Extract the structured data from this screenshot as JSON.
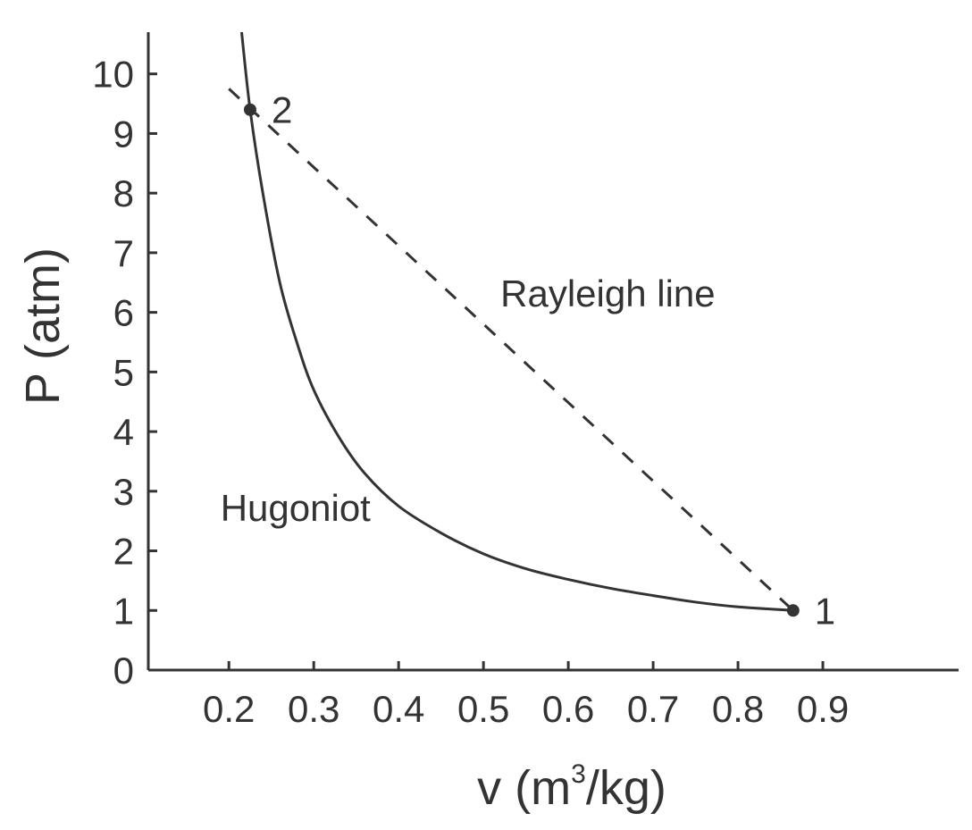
{
  "chart_data": {
    "type": "line",
    "title": "",
    "xlabel": {
      "prefix": "v (m",
      "superscript": "3",
      "suffix": "/kg)"
    },
    "ylabel": "P (atm)",
    "xlim": [
      0.105,
      1.06
    ],
    "ylim": [
      0,
      10.7
    ],
    "xticks": [
      0.2,
      0.3,
      0.4,
      0.5,
      0.6,
      0.7,
      0.8,
      0.9
    ],
    "xtick_labels": [
      "0.2",
      "0.3",
      "0.4",
      "0.5",
      "0.6",
      "0.7",
      "0.8",
      "0.9"
    ],
    "yticks": [
      0,
      1,
      2,
      3,
      4,
      5,
      6,
      7,
      8,
      9,
      10
    ],
    "ytick_labels": [
      "0",
      "1",
      "2",
      "3",
      "4",
      "5",
      "6",
      "7",
      "8",
      "9",
      "10"
    ],
    "grid": false,
    "legend": "none",
    "series": [
      {
        "name": "Hugoniot",
        "style": "solid",
        "color": "#333333",
        "x": [
          0.215,
          0.225,
          0.24,
          0.26,
          0.28,
          0.3,
          0.33,
          0.36,
          0.4,
          0.45,
          0.5,
          0.55,
          0.6,
          0.65,
          0.7,
          0.75,
          0.8,
          0.865
        ],
        "y": [
          10.7,
          9.4,
          8.0,
          6.5,
          5.5,
          4.7,
          3.9,
          3.3,
          2.75,
          2.3,
          1.95,
          1.7,
          1.52,
          1.37,
          1.25,
          1.14,
          1.06,
          1.0
        ]
      },
      {
        "name": "Rayleigh line",
        "style": "dashed",
        "color": "#333333",
        "x": [
          0.2,
          0.865
        ],
        "y": [
          9.75,
          1.0
        ]
      }
    ],
    "points": [
      {
        "label": "1",
        "x": 0.865,
        "y": 1.0
      },
      {
        "label": "2",
        "x": 0.225,
        "y": 9.4
      }
    ],
    "annotations": [
      {
        "text": "Rayleigh line",
        "x": 0.52,
        "y": 6.1
      },
      {
        "text": "Hugoniot",
        "x": 0.19,
        "y": 2.5
      }
    ]
  }
}
